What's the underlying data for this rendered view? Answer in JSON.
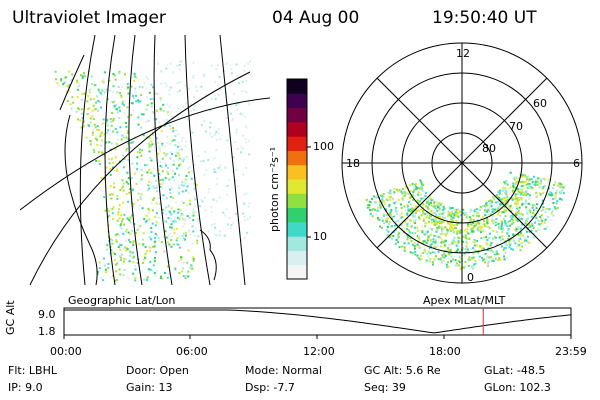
{
  "header": {
    "instrument": "Ultraviolet Imager",
    "date": "04 Aug 00",
    "time": "19:50:40 UT"
  },
  "colorbar": {
    "unit_label": "photon cm⁻²s⁻¹",
    "tick_100": "100",
    "tick_10": "10",
    "colors": [
      "#f5f5f5",
      "#d9f0f0",
      "#a0e8e0",
      "#40d8c8",
      "#30d070",
      "#90e040",
      "#e0e830",
      "#f8c020",
      "#f07010",
      "#e02010",
      "#b00020",
      "#700040",
      "#400050",
      "#100020"
    ]
  },
  "polar_plot": {
    "mlt_labels": {
      "top": "12",
      "left": "18",
      "right": "6",
      "bottom": "0"
    },
    "lat_labels": [
      "60",
      "70",
      "80"
    ]
  },
  "map_labels": {
    "left": "Geographic Lat/Lon",
    "right": "Apex MLat/MLT"
  },
  "altitude_plot": {
    "axis_label": "GC Alt",
    "y_labels": [
      "9.0",
      "1.8"
    ],
    "x_labels": [
      "00:00",
      "06:00",
      "12:00",
      "18:00",
      "23:59"
    ],
    "y_values_re": [
      1.8,
      9.0
    ],
    "marker_time": "19:50:40",
    "marker_color": "#d03030"
  },
  "info": {
    "flt": "Flt: LBHL",
    "ip": "IP:  9.0",
    "door": "Door: Open",
    "gain": "Gain: 13",
    "mode": "Mode: Normal",
    "dsp": "Dsp:    -7.7",
    "gc_alt": "GC Alt: 5.6 Re",
    "seq": "Seq: 39",
    "glat": "GLat: -48.5",
    "glon": "GLon: 102.3"
  }
}
